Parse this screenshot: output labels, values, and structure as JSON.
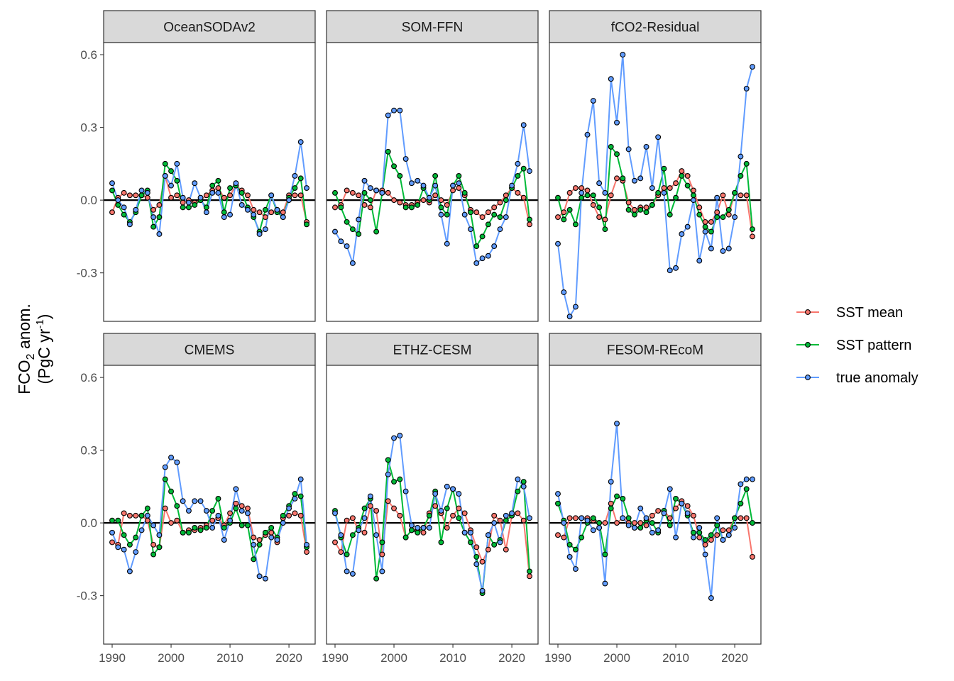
{
  "figure": {
    "ylabel": {
      "line1_prefix": "FCO",
      "line1_sub": "2",
      "line1_suffix": " anom.",
      "line2_prefix": "(PgC yr",
      "line2_sup": "-1",
      "line2_suffix": ")"
    },
    "legend": [
      {
        "name": "SST mean",
        "color": "#F8766D"
      },
      {
        "name": "SST pattern",
        "color": "#00BA38"
      },
      {
        "name": "true anomaly",
        "color": "#619CFF"
      }
    ]
  },
  "chart_data": [
    {
      "type": "line",
      "title": "OceanSODAv2",
      "x_start": 1990,
      "xlim": [
        1990,
        2023
      ],
      "ylim": [
        -0.5,
        0.65
      ],
      "xticks": [
        1990,
        2000,
        2010,
        2020
      ],
      "yticks": [
        -0.3,
        0.0,
        0.3,
        0.6
      ],
      "hline": 0,
      "series": [
        {
          "name": "SST mean",
          "values": [
            -0.05,
            0.01,
            0.03,
            0.02,
            0.02,
            0.02,
            0.01,
            -0.04,
            -0.02,
            0.1,
            0.01,
            0.02,
            -0.01,
            0.0,
            -0.01,
            0.0,
            0.02,
            0.04,
            0.05,
            0.01,
            0.02,
            0.06,
            0.04,
            0.02,
            -0.04,
            -0.05,
            -0.07,
            -0.05,
            -0.04,
            -0.05,
            0.02,
            0.02,
            0.02,
            -0.09
          ]
        },
        {
          "name": "SST pattern",
          "values": [
            0.04,
            -0.02,
            -0.06,
            -0.09,
            -0.05,
            0.02,
            0.04,
            -0.11,
            -0.07,
            0.15,
            0.12,
            0.08,
            -0.03,
            -0.03,
            -0.02,
            0.0,
            -0.03,
            0.06,
            0.08,
            -0.05,
            0.05,
            0.06,
            0.03,
            -0.03,
            -0.07,
            -0.13,
            -0.04,
            0.02,
            -0.05,
            -0.07,
            0.01,
            0.05,
            0.09,
            -0.1
          ]
        },
        {
          "name": "true anomaly",
          "values": [
            0.07,
            0.0,
            -0.03,
            -0.1,
            -0.04,
            0.04,
            0.03,
            -0.07,
            -0.14,
            0.1,
            0.06,
            0.15,
            0.01,
            -0.01,
            0.07,
            0.01,
            -0.05,
            0.03,
            0.03,
            -0.07,
            -0.06,
            0.07,
            -0.02,
            -0.04,
            -0.06,
            -0.14,
            -0.12,
            0.02,
            -0.04,
            -0.07,
            0.0,
            0.1,
            0.24,
            0.05
          ]
        }
      ]
    },
    {
      "type": "line",
      "title": "SOM-FFN",
      "x_start": 1990,
      "xlim": [
        1990,
        2023
      ],
      "ylim": [
        -0.5,
        0.65
      ],
      "xticks": [
        1990,
        2000,
        2010,
        2020
      ],
      "yticks": [
        -0.3,
        0.0,
        0.3,
        0.6
      ],
      "hline": 0,
      "series": [
        {
          "name": "SST mean",
          "values": [
            -0.03,
            -0.02,
            0.04,
            0.03,
            0.02,
            -0.02,
            -0.03,
            0.04,
            0.04,
            0.03,
            0.0,
            -0.01,
            -0.02,
            -0.02,
            -0.01,
            0.0,
            -0.01,
            0.02,
            0.0,
            -0.02,
            0.04,
            0.05,
            0.02,
            -0.04,
            -0.05,
            -0.07,
            -0.05,
            -0.03,
            -0.01,
            0.02,
            0.05,
            0.03,
            0.01,
            -0.1
          ]
        },
        {
          "name": "SST pattern",
          "values": [
            0.03,
            -0.03,
            -0.09,
            -0.12,
            -0.14,
            0.03,
            0.0,
            -0.13,
            0.03,
            0.2,
            0.14,
            0.1,
            -0.03,
            -0.03,
            -0.02,
            0.05,
            0.0,
            0.1,
            -0.03,
            -0.06,
            0.06,
            0.1,
            0.03,
            -0.05,
            -0.19,
            -0.15,
            -0.1,
            -0.06,
            -0.07,
            0.0,
            0.05,
            0.1,
            0.13,
            -0.08
          ]
        },
        {
          "name": "true anomaly",
          "values": [
            -0.13,
            -0.17,
            -0.19,
            -0.26,
            -0.08,
            0.08,
            0.05,
            0.04,
            0.03,
            0.35,
            0.37,
            0.37,
            0.17,
            0.07,
            0.08,
            0.06,
            0.01,
            0.06,
            -0.06,
            -0.18,
            0.06,
            0.07,
            -0.06,
            -0.12,
            -0.26,
            -0.24,
            -0.23,
            -0.19,
            -0.12,
            -0.07,
            0.06,
            0.15,
            0.31,
            0.12
          ]
        }
      ]
    },
    {
      "type": "line",
      "title": "fCO2-Residual",
      "x_start": 1990,
      "xlim": [
        1990,
        2023
      ],
      "ylim": [
        -0.5,
        0.65
      ],
      "xticks": [
        1990,
        2000,
        2010,
        2020
      ],
      "yticks": [
        -0.3,
        0.0,
        0.3,
        0.6
      ],
      "hline": 0,
      "series": [
        {
          "name": "SST mean",
          "values": [
            -0.07,
            -0.05,
            0.03,
            0.05,
            0.05,
            0.04,
            -0.02,
            -0.07,
            -0.08,
            0.02,
            0.09,
            0.08,
            -0.01,
            -0.04,
            -0.03,
            -0.03,
            -0.02,
            0.02,
            0.05,
            0.05,
            0.07,
            0.12,
            0.1,
            0.04,
            -0.03,
            -0.09,
            -0.09,
            -0.05,
            0.02,
            -0.06,
            0.03,
            0.02,
            0.02,
            -0.15
          ]
        },
        {
          "name": "SST pattern",
          "values": [
            0.01,
            -0.08,
            -0.04,
            -0.1,
            0.01,
            0.02,
            0.02,
            -0.03,
            -0.12,
            0.22,
            0.19,
            0.09,
            -0.04,
            -0.06,
            -0.04,
            -0.05,
            -0.02,
            0.03,
            0.13,
            -0.06,
            0.01,
            0.1,
            0.06,
            0.02,
            -0.06,
            -0.11,
            -0.13,
            -0.07,
            -0.07,
            -0.04,
            0.03,
            0.1,
            0.15,
            -0.12
          ]
        },
        {
          "name": "true anomaly",
          "values": [
            -0.18,
            -0.38,
            -0.48,
            -0.44,
            0.03,
            0.27,
            0.41,
            0.07,
            0.03,
            0.5,
            0.32,
            0.6,
            0.21,
            0.08,
            0.09,
            0.22,
            0.05,
            0.26,
            0.03,
            -0.29,
            -0.28,
            -0.14,
            -0.11,
            0.0,
            -0.25,
            -0.13,
            -0.2,
            0.01,
            -0.21,
            -0.2,
            -0.07,
            0.18,
            0.46,
            0.55
          ]
        }
      ]
    },
    {
      "type": "line",
      "title": "CMEMS",
      "x_start": 1990,
      "xlim": [
        1990,
        2023
      ],
      "ylim": [
        -0.5,
        0.65
      ],
      "xticks": [
        1990,
        2000,
        2010,
        2020
      ],
      "yticks": [
        -0.3,
        0.0,
        0.3,
        0.6
      ],
      "hline": 0,
      "series": [
        {
          "name": "SST mean",
          "values": [
            -0.08,
            -0.09,
            0.04,
            0.03,
            0.03,
            0.03,
            0.01,
            -0.09,
            -0.1,
            0.06,
            0.0,
            0.01,
            -0.04,
            -0.03,
            -0.03,
            -0.02,
            -0.01,
            0.01,
            0.02,
            -0.01,
            0.04,
            0.08,
            0.07,
            0.06,
            -0.06,
            -0.07,
            -0.05,
            -0.04,
            -0.08,
            0.02,
            0.03,
            0.04,
            0.03,
            -0.12
          ]
        },
        {
          "name": "SST pattern",
          "values": [
            0.01,
            0.01,
            -0.05,
            -0.09,
            -0.06,
            0.03,
            0.06,
            -0.13,
            -0.1,
            0.18,
            0.13,
            0.07,
            -0.04,
            -0.04,
            -0.02,
            -0.03,
            -0.02,
            0.05,
            0.1,
            -0.02,
            0.0,
            0.06,
            -0.01,
            -0.01,
            -0.15,
            -0.09,
            -0.04,
            -0.02,
            -0.06,
            0.03,
            0.07,
            0.12,
            0.11,
            -0.1
          ]
        },
        {
          "name": "true anomaly",
          "values": [
            -0.04,
            -0.1,
            -0.11,
            -0.2,
            -0.12,
            -0.03,
            0.03,
            -0.01,
            -0.05,
            0.23,
            0.27,
            0.25,
            0.09,
            0.05,
            0.09,
            0.09,
            0.05,
            -0.02,
            0.03,
            -0.07,
            0.01,
            0.14,
            0.05,
            0.04,
            -0.09,
            -0.22,
            -0.23,
            -0.06,
            -0.07,
            0.0,
            0.06,
            0.1,
            0.18,
            -0.09
          ]
        }
      ]
    },
    {
      "type": "line",
      "title": "ETHZ-CESM",
      "x_start": 1990,
      "xlim": [
        1990,
        2023
      ],
      "ylim": [
        -0.5,
        0.65
      ],
      "xticks": [
        1990,
        2000,
        2010,
        2020
      ],
      "yticks": [
        -0.3,
        0.0,
        0.3,
        0.6
      ],
      "hline": 0,
      "series": [
        {
          "name": "SST mean",
          "values": [
            -0.08,
            -0.12,
            0.01,
            0.02,
            -0.03,
            -0.04,
            0.07,
            0.05,
            -0.13,
            0.09,
            0.06,
            0.03,
            -0.06,
            -0.03,
            -0.03,
            -0.04,
            0.04,
            0.07,
            0.04,
            -0.02,
            0.03,
            0.06,
            0.04,
            -0.03,
            -0.1,
            -0.16,
            -0.11,
            0.03,
            0.01,
            -0.11,
            0.03,
            0.04,
            0.01,
            -0.22
          ]
        },
        {
          "name": "SST pattern",
          "values": [
            0.05,
            -0.06,
            -0.13,
            -0.05,
            -0.02,
            0.06,
            0.1,
            -0.23,
            -0.08,
            0.26,
            0.17,
            0.18,
            -0.06,
            -0.03,
            -0.04,
            -0.02,
            0.03,
            0.13,
            -0.08,
            0.06,
            0.14,
            0.02,
            -0.04,
            -0.08,
            -0.14,
            -0.29,
            -0.05,
            -0.09,
            -0.07,
            0.01,
            0.03,
            0.13,
            0.17,
            -0.2
          ]
        },
        {
          "name": "true anomaly",
          "values": [
            0.04,
            -0.05,
            -0.2,
            -0.21,
            -0.03,
            0.02,
            0.11,
            -0.05,
            -0.2,
            0.2,
            0.35,
            0.36,
            0.13,
            -0.01,
            -0.02,
            -0.02,
            -0.02,
            0.12,
            0.05,
            0.15,
            0.14,
            0.12,
            -0.04,
            -0.04,
            -0.17,
            -0.28,
            -0.05,
            0.0,
            -0.08,
            0.03,
            0.04,
            0.18,
            0.15,
            0.02
          ]
        }
      ]
    },
    {
      "type": "line",
      "title": "FESOM-REcoM",
      "x_start": 1990,
      "xlim": [
        1990,
        2023
      ],
      "ylim": [
        -0.5,
        0.65
      ],
      "xticks": [
        1990,
        2000,
        2010,
        2020
      ],
      "yticks": [
        -0.3,
        0.0,
        0.3,
        0.6
      ],
      "hline": 0,
      "series": [
        {
          "name": "SST mean",
          "values": [
            -0.05,
            -0.06,
            0.02,
            0.02,
            0.02,
            0.02,
            0.01,
            0.0,
            0.0,
            0.08,
            0.0,
            0.02,
            0.0,
            0.0,
            0.0,
            -0.01,
            0.03,
            0.05,
            0.05,
            0.02,
            0.06,
            0.09,
            0.07,
            0.03,
            -0.06,
            -0.09,
            -0.07,
            -0.05,
            -0.03,
            -0.03,
            0.02,
            0.02,
            0.02,
            -0.14
          ]
        },
        {
          "name": "SST pattern",
          "values": [
            0.08,
            0.01,
            -0.09,
            -0.11,
            -0.06,
            0.0,
            0.02,
            0.0,
            -0.13,
            0.06,
            0.11,
            0.1,
            0.02,
            -0.02,
            -0.02,
            0.01,
            0.0,
            -0.04,
            0.05,
            -0.01,
            0.1,
            0.08,
            0.03,
            -0.04,
            -0.04,
            -0.07,
            -0.05,
            -0.01,
            -0.07,
            -0.05,
            0.02,
            0.08,
            0.14,
            0.0
          ]
        },
        {
          "name": "true anomaly",
          "values": [
            0.12,
            0.0,
            -0.14,
            -0.19,
            0.02,
            0.01,
            -0.03,
            -0.02,
            -0.25,
            0.17,
            0.41,
            0.02,
            -0.01,
            -0.02,
            0.06,
            0.02,
            -0.04,
            -0.03,
            0.04,
            0.14,
            -0.06,
            0.08,
            0.04,
            -0.06,
            -0.02,
            -0.13,
            -0.31,
            0.02,
            -0.07,
            -0.05,
            -0.02,
            0.16,
            0.18,
            0.18
          ]
        }
      ]
    }
  ]
}
